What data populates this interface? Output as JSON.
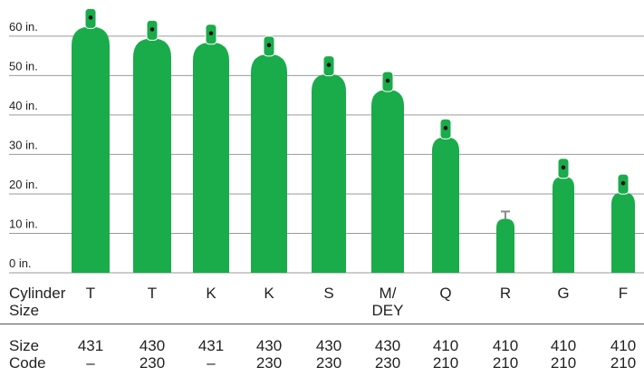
{
  "chart_data": {
    "type": "cylinder",
    "categories": [
      "T",
      "T",
      "K",
      "K",
      "S",
      "M/ DEY",
      "Q",
      "R",
      "G",
      "F"
    ],
    "values": [
      67,
      64,
      63,
      60,
      55,
      51,
      39,
      16,
      29,
      25
    ],
    "color": "#1aab4b",
    "ylim": [
      0,
      68
    ],
    "yticks": [
      {
        "value": 0,
        "label": "0 in."
      },
      {
        "value": 10,
        "label": "10 in."
      },
      {
        "value": 20,
        "label": "20 in."
      },
      {
        "value": 30,
        "label": "30 in."
      },
      {
        "value": 40,
        "label": "40 in."
      },
      {
        "value": 50,
        "label": "50 in."
      },
      {
        "value": 60,
        "label": "60 in."
      }
    ],
    "grid": true,
    "row_label": "Cylinder Size",
    "code_label": "Size Code",
    "size_codes": [
      [
        "431",
        "–"
      ],
      [
        "430",
        "230"
      ],
      [
        "431",
        "–"
      ],
      [
        "430",
        "230"
      ],
      [
        "430",
        "230"
      ],
      [
        "430",
        "230"
      ],
      [
        "410",
        "210"
      ],
      [
        "410",
        "210"
      ],
      [
        "410",
        "210"
      ],
      [
        "410",
        "210"
      ]
    ]
  }
}
